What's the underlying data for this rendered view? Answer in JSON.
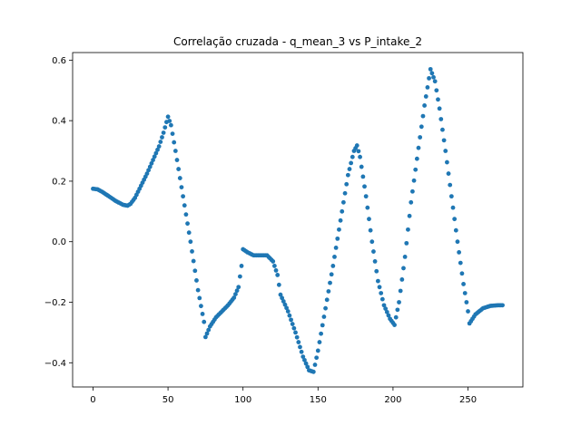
{
  "chart_data": {
    "type": "scatter",
    "title": "Correlação cruzada - q_mean_3 vs P_intake_2",
    "xlabel": "",
    "ylabel": "",
    "xlim": [
      -13.6,
      286.6
    ],
    "ylim": [
      -0.48,
      0.625
    ],
    "xticks": [
      "0",
      "50",
      "100",
      "150",
      "200",
      "250"
    ],
    "yticks": [
      "−0.4",
      "−0.2",
      "0.0",
      "0.2",
      "0.4",
      "0.6"
    ],
    "grid": false,
    "legend": "none",
    "marker_color": "#1f77b4",
    "series": [
      {
        "x_start": 0,
        "x_end": 273,
        "anchors": [
          [
            0,
            0.175
          ],
          [
            3,
            0.173
          ],
          [
            6,
            0.165
          ],
          [
            10,
            0.152
          ],
          [
            15,
            0.135
          ],
          [
            20,
            0.122
          ],
          [
            23,
            0.119
          ],
          [
            25,
            0.125
          ],
          [
            28,
            0.145
          ],
          [
            32,
            0.185
          ],
          [
            36,
            0.225
          ],
          [
            40,
            0.27
          ],
          [
            44,
            0.315
          ],
          [
            47,
            0.36
          ],
          [
            50,
            0.413
          ],
          [
            52,
            0.385
          ],
          [
            55,
            0.3
          ],
          [
            60,
            0.15
          ],
          [
            65,
            0.0
          ],
          [
            70,
            -0.16
          ],
          [
            74,
            -0.265
          ],
          [
            75,
            -0.315
          ],
          [
            78,
            -0.28
          ],
          [
            82,
            -0.25
          ],
          [
            86,
            -0.23
          ],
          [
            90,
            -0.21
          ],
          [
            94,
            -0.185
          ],
          [
            97,
            -0.15
          ],
          [
            99,
            -0.08
          ],
          [
            100,
            -0.025
          ],
          [
            103,
            -0.035
          ],
          [
            107,
            -0.045
          ],
          [
            112,
            -0.045
          ],
          [
            116,
            -0.045
          ],
          [
            120,
            -0.065
          ],
          [
            123,
            -0.11
          ],
          [
            125,
            -0.175
          ],
          [
            130,
            -0.23
          ],
          [
            135,
            -0.3
          ],
          [
            140,
            -0.38
          ],
          [
            144,
            -0.425
          ],
          [
            147,
            -0.43
          ],
          [
            150,
            -0.36
          ],
          [
            155,
            -0.22
          ],
          [
            160,
            -0.08
          ],
          [
            165,
            0.07
          ],
          [
            170,
            0.22
          ],
          [
            174,
            0.3
          ],
          [
            176,
            0.318
          ],
          [
            178,
            0.28
          ],
          [
            182,
            0.15
          ],
          [
            186,
            0.0
          ],
          [
            190,
            -0.13
          ],
          [
            194,
            -0.21
          ],
          [
            198,
            -0.255
          ],
          [
            201,
            -0.275
          ],
          [
            204,
            -0.2
          ],
          [
            208,
            -0.05
          ],
          [
            212,
            0.13
          ],
          [
            217,
            0.31
          ],
          [
            221,
            0.45
          ],
          [
            225,
            0.57
          ],
          [
            228,
            0.53
          ],
          [
            231,
            0.44
          ],
          [
            235,
            0.3
          ],
          [
            239,
            0.15
          ],
          [
            243,
            0.0
          ],
          [
            247,
            -0.14
          ],
          [
            250,
            -0.23
          ],
          [
            251,
            -0.27
          ],
          [
            255,
            -0.24
          ],
          [
            260,
            -0.22
          ],
          [
            265,
            -0.212
          ],
          [
            270,
            -0.21
          ],
          [
            273,
            -0.21
          ]
        ]
      }
    ]
  }
}
